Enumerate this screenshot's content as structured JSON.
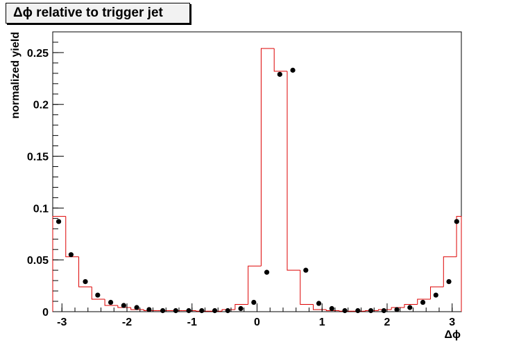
{
  "chart_data": {
    "type": "line",
    "title": "Δϕ relative to trigger jet",
    "xlabel": "Δϕ",
    "ylabel": "normalized yield",
    "xlim": [
      -3.1416,
      3.1416
    ],
    "ylim": [
      0,
      0.27
    ],
    "x_ticks": [
      -3,
      -2,
      -1,
      0,
      1,
      2,
      3
    ],
    "x_tick_labels": [
      "-3",
      "-2",
      "-1",
      "0",
      "1",
      "2",
      "3"
    ],
    "y_ticks": [
      0,
      0.05,
      0.1,
      0.15,
      0.2,
      0.25
    ],
    "y_tick_labels": [
      "0",
      "0.05",
      "0.1",
      "0.15",
      "0.2",
      "0.25"
    ],
    "grid": false,
    "bin_edges": [
      -3.1416,
      -2.9413,
      -2.741,
      -2.5407,
      -2.3404,
      -2.1401,
      -1.9398,
      -1.7395,
      -1.5392,
      -1.3389,
      -1.1386,
      -0.9383,
      -0.738,
      -0.5377,
      -0.3374,
      -0.1371,
      0.0632,
      0.2635,
      0.4638,
      0.6641,
      0.8644,
      1.0647,
      1.265,
      1.4653,
      1.6656,
      1.8659,
      2.0662,
      2.2665,
      2.4668,
      2.6671,
      2.8674,
      3.0677,
      3.1416
    ],
    "series": [
      {
        "kind": "histogram",
        "color": "#dd0000",
        "values": [
          0.092,
          0.053,
          0.024,
          0.012,
          0.006,
          0.004,
          0.002,
          0.001,
          0.001,
          0.001,
          0.001,
          0.0005,
          0.0005,
          0.002,
          0.007,
          0.044,
          0.254,
          0.232,
          0.04,
          0.007,
          0.002,
          0.001,
          0.0005,
          0.0005,
          0.001,
          0.002,
          0.004,
          0.007,
          0.012,
          0.024,
          0.053,
          0.092
        ]
      },
      {
        "kind": "markers",
        "color": "#000000",
        "x": [
          -3.05,
          -2.86,
          -2.64,
          -2.45,
          -2.25,
          -2.05,
          -1.85,
          -1.66,
          -1.45,
          -1.25,
          -1.05,
          -0.85,
          -0.65,
          -0.45,
          -0.25,
          -0.05,
          0.15,
          0.35,
          0.55,
          0.75,
          0.95,
          1.15,
          1.35,
          1.55,
          1.75,
          1.95,
          2.15,
          2.35,
          2.55,
          2.75,
          2.95,
          3.07
        ],
        "y": [
          0.087,
          0.055,
          0.029,
          0.016,
          0.009,
          0.006,
          0.004,
          0.002,
          0.001,
          0.001,
          0.001,
          0.001,
          0.001,
          0.001,
          0.003,
          0.009,
          0.038,
          0.229,
          0.233,
          0.04,
          0.008,
          0.003,
          0.001,
          0.001,
          0.001,
          0.001,
          0.002,
          0.004,
          0.009,
          0.016,
          0.029,
          0.087
        ]
      }
    ]
  }
}
